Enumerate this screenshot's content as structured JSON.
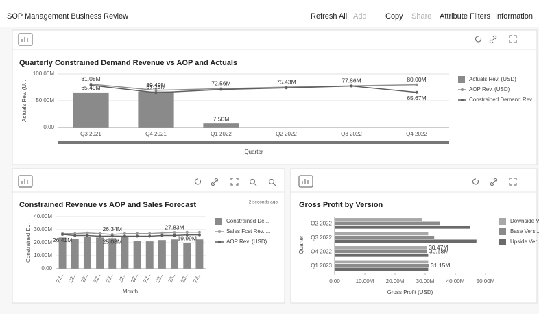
{
  "header": {
    "title": "SOP Management Business Review",
    "actions": [
      "Refresh All",
      "Add",
      "Copy",
      "Share",
      "Attribute Filters",
      "Information"
    ]
  },
  "chart_data": [
    {
      "type": "combo",
      "title": "Quarterly Constrained Demand Revenue vs AOP and Actuals",
      "categories": [
        "Q3 2021",
        "Q4 2021",
        "Q1 2022",
        "Q2 2022",
        "Q3 2022",
        "Q4 2022"
      ],
      "series": [
        {
          "name": "Actuals Rev. (USD)",
          "mark": "bar",
          "color": "#8a8a8a",
          "values": [
            65.49,
            67.23,
            7.5,
            null,
            null,
            null
          ],
          "value_labels": [
            "65.49M",
            "67.23M",
            "7.50M",
            null,
            null,
            null
          ]
        },
        {
          "name": "AOP Rev. (USD)",
          "mark": "line",
          "color": "#8f8f8f",
          "values": [
            81.08,
            69.49,
            72.56,
            75.43,
            77.86,
            80
          ],
          "value_labels": [
            "81.08M",
            "69.49M",
            "72.56M",
            "75.43M",
            "77.86M",
            "80.00M"
          ]
        },
        {
          "name": "Constrained Demand Rev",
          "mark": "line",
          "color": "#5e5e5e",
          "values": [
            79,
            65,
            71,
            74,
            77.5,
            65.67
          ],
          "value_labels": [
            null,
            null,
            null,
            null,
            null,
            "65.67M"
          ]
        }
      ],
      "ylim": [
        0,
        100
      ],
      "yticks": [
        {
          "value": 0,
          "label": "0.00"
        },
        {
          "value": 50,
          "label": "50.00M"
        },
        {
          "value": 100,
          "label": "100.00M"
        }
      ],
      "y_label": "Actuals Rev. (U...",
      "x_label": "Quarter",
      "grid": true
    },
    {
      "type": "combo",
      "title": "Constrained Revenue vs AOP and Sales Forecast",
      "subtitle": "2 seconds ago",
      "categories": [
        "22...",
        "22...",
        "22...",
        "22...",
        "22...",
        "22...",
        "22...",
        "22...",
        "23...",
        "23...",
        "23...",
        "23..."
      ],
      "series": [
        {
          "name": "Constrained De...",
          "mark": "bar",
          "color": "#8a8a8a",
          "values": [
            24,
            23,
            24.5,
            24,
            23.5,
            24.5,
            21.5,
            21,
            22,
            22.5,
            19.99,
            22.5
          ],
          "value_labels": [
            null,
            null,
            null,
            null,
            null,
            null,
            null,
            null,
            null,
            null,
            "19.99M",
            null
          ]
        },
        {
          "name": "Sales Fcst Rev. ...",
          "mark": "line",
          "color": "#9a9a9a",
          "values": [
            27,
            27,
            27.5,
            27,
            26.34,
            27,
            27,
            27,
            27.5,
            27.83,
            28,
            28
          ],
          "value_labels": [
            null,
            null,
            null,
            null,
            "26.34M",
            null,
            null,
            null,
            null,
            "27.83M",
            null,
            null
          ]
        },
        {
          "name": "AOP Rev. (USD)",
          "mark": "line",
          "color": "#5e5e5e",
          "values": [
            26.41,
            25.5,
            25.5,
            25,
            25.08,
            25,
            25,
            25,
            25.5,
            25.5,
            26,
            26
          ],
          "value_labels": [
            "26.41M",
            null,
            null,
            null,
            "25.08M",
            null,
            null,
            null,
            null,
            null,
            null,
            null
          ]
        }
      ],
      "ylim": [
        0,
        40
      ],
      "yticks": [
        {
          "value": 0,
          "label": "0.00"
        },
        {
          "value": 10,
          "label": "10.00M"
        },
        {
          "value": 20,
          "label": "20.00M"
        },
        {
          "value": 30,
          "label": "30.00M"
        },
        {
          "value": 40,
          "label": "40.00M"
        }
      ],
      "y_label": "Constrained D...",
      "x_label": "Month",
      "grid": true
    },
    {
      "type": "hbar",
      "title": "Gross Profit by Version",
      "categories": [
        "Q2 2022",
        "Q3 2022",
        "Q4 2022",
        "Q1 2023"
      ],
      "series": [
        {
          "name": "Downside V...",
          "color": "#a8a8a8",
          "values": [
            29,
            31,
            30.47,
            31
          ],
          "value_labels": [
            null,
            null,
            "30.47M",
            null
          ]
        },
        {
          "name": "Base Versi...",
          "color": "#8a8a8a",
          "values": [
            35,
            33,
            30.68,
            31.15
          ],
          "value_labels": [
            null,
            null,
            "30.68M",
            "31.15M"
          ]
        },
        {
          "name": "Upside Ver...",
          "color": "#6a6a6a",
          "values": [
            45,
            47,
            31,
            31
          ],
          "value_labels": [
            null,
            null,
            null,
            null
          ]
        }
      ],
      "xlim": [
        0,
        50
      ],
      "xticks": [
        {
          "value": 0,
          "label": "0.00"
        },
        {
          "value": 10,
          "label": "10.00M"
        },
        {
          "value": 20,
          "label": "20.00M"
        },
        {
          "value": 30,
          "label": "30.00M"
        },
        {
          "value": 40,
          "label": "40.00M"
        },
        {
          "value": 50,
          "label": "50.00M"
        }
      ],
      "y_label": "Quarter",
      "x_label": "Gross Profit (USD)",
      "grid": false
    }
  ]
}
